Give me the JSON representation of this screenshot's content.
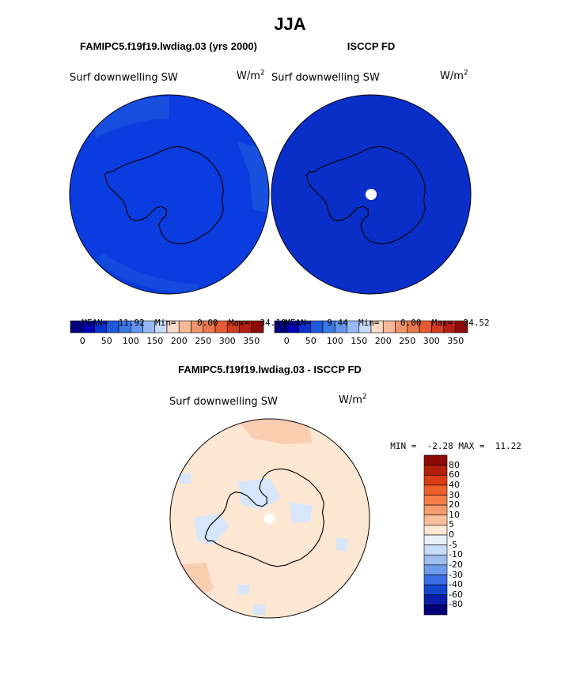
{
  "season": "JJA",
  "panels": {
    "left": {
      "title": "FAMIPC5.f19f19.lwdiag.03 (yrs 2000)",
      "variable": "Surf downwelling SW",
      "units_base": "W/m",
      "units_exp": "2",
      "stats": {
        "mean_label": "MEAN=",
        "mean": "11.92",
        "min_label": "Min=",
        "min": "0.00",
        "max_label": "Max=",
        "max": "34.10"
      }
    },
    "right": {
      "title": "ISCCP FD",
      "variable": "Surf downwelling SW",
      "units_base": "W/m",
      "units_exp": "2",
      "stats": {
        "mean_label": "MEAN=",
        "mean": "9.44",
        "min_label": "Min=",
        "min": "0.00",
        "max_label": "Max=",
        "max": "24.52"
      }
    },
    "diff": {
      "title": "FAMIPC5.f19f19.lwdiag.03 - ISCCP FD",
      "variable": "Surf downwelling SW",
      "units_base": "W/m",
      "units_exp": "2",
      "stats": {
        "min_label": "MIN =",
        "min": "-2.28",
        "max_label": "MAX =",
        "max": "11.22"
      }
    }
  },
  "abs_colorbar": {
    "ticks": [
      "0",
      "50",
      "100",
      "150",
      "200",
      "250",
      "300",
      "350"
    ],
    "colors": [
      "#00007d",
      "#0000b4",
      "#0a32d2",
      "#1e5adc",
      "#3c78e6",
      "#6496f0",
      "#96b9f5",
      "#c8dcfa",
      "#fadcc8",
      "#f5b996",
      "#f0966e",
      "#eb7850",
      "#e65a32",
      "#d23c1e",
      "#b41e14",
      "#8c0a0a"
    ]
  },
  "diff_colorbar": {
    "labels": [
      "80",
      "60",
      "40",
      "30",
      "20",
      "10",
      "5",
      "0",
      "-5",
      "-10",
      "-20",
      "-30",
      "-40",
      "-60",
      "-80"
    ],
    "colors": [
      "#8c0a0a",
      "#b41e0a",
      "#dc3c14",
      "#ef5f28",
      "#f57d46",
      "#f59b6e",
      "#fabe9b",
      "#fde6d2",
      "#e8f0fa",
      "#c8dcf5",
      "#9ebef0",
      "#6e9bec",
      "#3c6ee6",
      "#1446d2",
      "#0a1eaa",
      "#000078"
    ]
  },
  "map_colors": {
    "ocean_deep_blue": "#0033cc",
    "model_blue": "#0b3ce0",
    "model_light_blue": "#1e5adc",
    "diff_pink": "#fde6d2",
    "diff_light_blue": "#d7e6fa",
    "diff_orange": "#f8cdb0"
  },
  "legend_icons": {
    "land_outline": "antarctica-coastline",
    "missing_data": "pole-hole"
  }
}
